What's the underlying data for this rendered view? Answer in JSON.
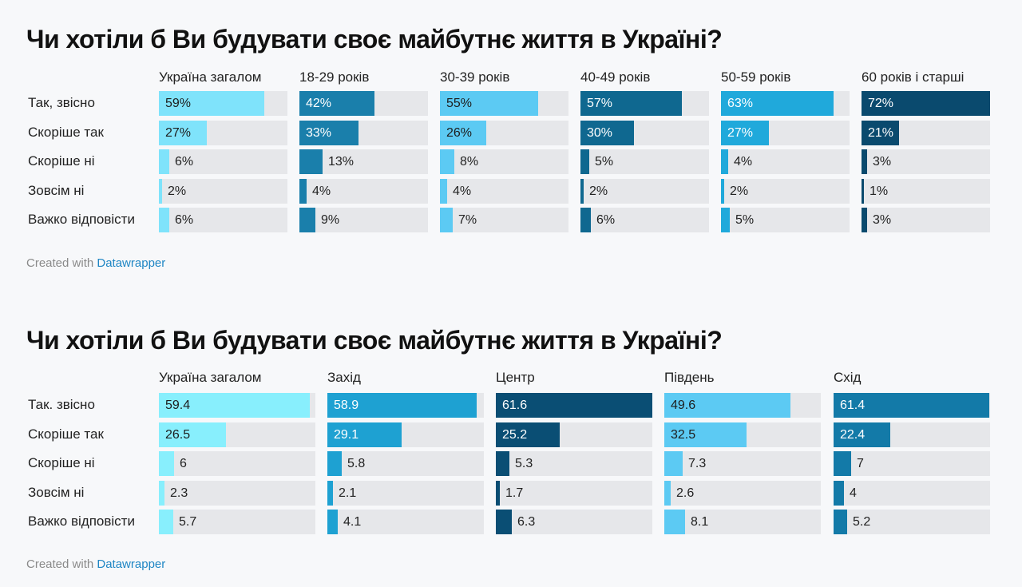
{
  "credit": {
    "prefix": "Created with ",
    "link": "Datawrapper"
  },
  "chart_data": [
    {
      "type": "bar",
      "title": "Чи хотіли б Ви будувати своє майбутнє життя в Україні?",
      "categories": [
        "Так, звісно",
        "Скоріше так",
        "Скоріше ні",
        "Зовсім ні",
        "Важко відповісти"
      ],
      "value_format": "percent",
      "xlim": [
        0,
        72
      ],
      "series": [
        {
          "name": "Україна загалом",
          "values": [
            59,
            27,
            6,
            2,
            6
          ],
          "color": "#7fe3fb"
        },
        {
          "name": "18-29 років",
          "values": [
            42,
            33,
            13,
            4,
            9
          ],
          "color": "#1a7fab"
        },
        {
          "name": "30-39 років",
          "values": [
            55,
            26,
            8,
            4,
            7
          ],
          "color": "#5ccaf3"
        },
        {
          "name": "40-49 років",
          "values": [
            57,
            30,
            5,
            2,
            6
          ],
          "color": "#0f6890"
        },
        {
          "name": "50-59 років",
          "values": [
            63,
            27,
            4,
            2,
            5
          ],
          "color": "#20a9db"
        },
        {
          "name": "60 років і старші",
          "values": [
            72,
            21,
            3,
            1,
            3
          ],
          "color": "#0a4a6e"
        }
      ]
    },
    {
      "type": "bar",
      "title": "Чи хотіли б Ви будувати своє майбутнє життя в Україні?",
      "categories": [
        "Так. звісно",
        "Скоріше так",
        "Скоріше ні",
        "Зовсім ні",
        "Важко відповісти"
      ],
      "value_format": "decimal",
      "xlim": [
        0,
        61.6
      ],
      "series": [
        {
          "name": "Україна загалом",
          "values": [
            59.4,
            26.5,
            6,
            2.3,
            5.7
          ],
          "color": "#88effd"
        },
        {
          "name": "Захід",
          "values": [
            58.9,
            29.1,
            5.8,
            2.1,
            4.1
          ],
          "color": "#1ea1d2"
        },
        {
          "name": "Центр",
          "values": [
            61.6,
            25.2,
            5.3,
            1.7,
            6.3
          ],
          "color": "#0a4e74"
        },
        {
          "name": "Південь",
          "values": [
            49.6,
            32.5,
            7.3,
            2.6,
            8.1
          ],
          "color": "#5ccaf3"
        },
        {
          "name": "Схід",
          "values": [
            61.4,
            22.4,
            7,
            4,
            5.2
          ],
          "color": "#137aa8"
        }
      ]
    }
  ]
}
